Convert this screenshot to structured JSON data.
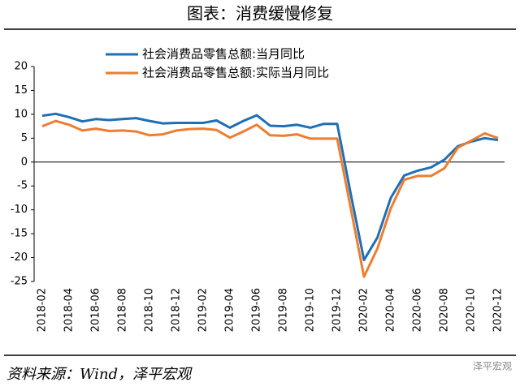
{
  "chart_data": {
    "type": "line",
    "title": "图表：消费缓慢修复",
    "source": "资料来源：Wind，泽平宏观",
    "watermark": "泽平宏观",
    "categories": [
      "2018-02",
      null,
      "2018-04",
      null,
      "2018-06",
      null,
      "2018-08",
      null,
      "2018-10",
      null,
      "2018-12",
      null,
      "2019-02",
      null,
      "2019-04",
      null,
      "2019-06",
      null,
      "2019-08",
      null,
      "2019-10",
      null,
      "2019-12",
      null,
      "2020-02",
      null,
      "2020-04",
      null,
      "2020-06",
      null,
      "2020-08",
      null,
      "2020-10",
      null,
      "2020-12"
    ],
    "series": [
      {
        "name": "社会消费品零售总额:当月同比",
        "color": "#1f6fb4",
        "values": [
          9.7,
          10.1,
          9.4,
          8.5,
          9.0,
          8.8,
          9.0,
          9.2,
          8.6,
          8.1,
          8.2,
          8.2,
          8.2,
          8.7,
          7.2,
          8.6,
          9.8,
          7.6,
          7.5,
          7.8,
          7.2,
          8.0,
          8.0,
          -6.5,
          -20.5,
          -15.8,
          -7.5,
          -2.8,
          -1.8,
          -1.1,
          0.5,
          3.3,
          4.3,
          5.0,
          4.6
        ]
      },
      {
        "name": "社会消费品零售总额:实际当月同比",
        "color": "#ed7d31",
        "values": [
          7.5,
          8.6,
          7.8,
          6.6,
          7.0,
          6.5,
          6.6,
          6.4,
          5.6,
          5.8,
          6.6,
          6.9,
          7.0,
          6.7,
          5.1,
          6.4,
          7.8,
          5.6,
          5.5,
          5.8,
          4.9,
          4.9,
          4.9,
          -9.5,
          -24.0,
          -18.1,
          -9.7,
          -3.7,
          -2.9,
          -2.9,
          -1.3,
          3.0,
          4.5,
          6.0,
          5.0
        ]
      }
    ],
    "ylim": [
      -25,
      20
    ],
    "yticks": [
      20,
      15,
      10,
      5,
      0,
      -5,
      -10,
      -15,
      -20,
      -25
    ]
  }
}
